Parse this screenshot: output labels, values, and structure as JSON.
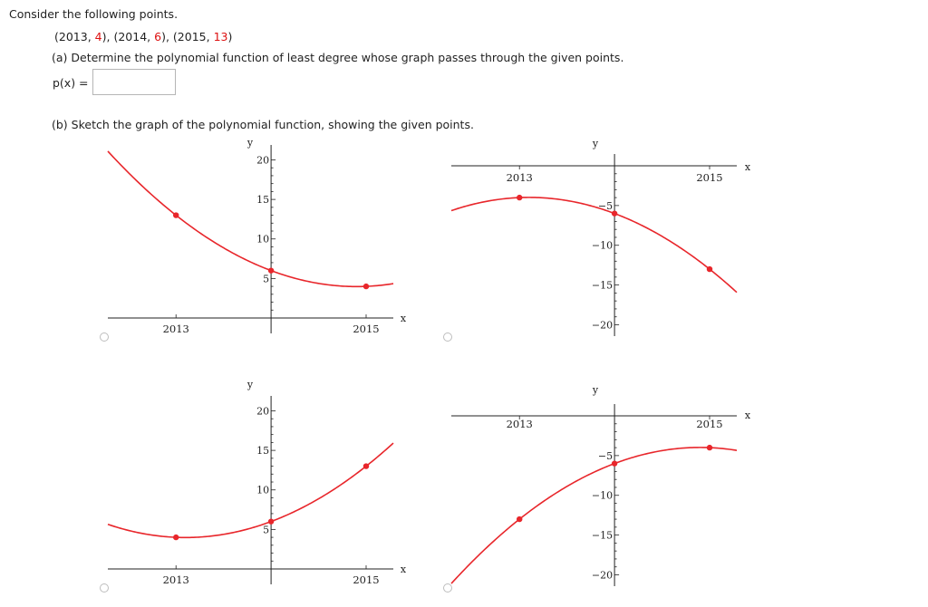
{
  "question": {
    "intro": "Consider the following points.",
    "points": [
      {
        "open": "(",
        "x": "2013",
        "sep": ", ",
        "y": "4",
        "close": "),"
      },
      {
        "open": "(",
        "x": "2014",
        "sep": ", ",
        "y": "6",
        "close": "),"
      },
      {
        "open": "(",
        "x": "2015",
        "sep": ", ",
        "y": "13",
        "close": ")"
      }
    ],
    "part_a": "(a) Determine the polynomial function of least degree whose graph passes through the given points.",
    "answer_label": "p(x)  =",
    "answer_value": "",
    "part_b": "(b) Sketch the graph of the polynomial function, showing the given points."
  },
  "colors": {
    "curve": "#e8262b",
    "point": "#e8262b",
    "axis": "#222222",
    "highlight": "#d11111"
  },
  "chart_data": [
    {
      "type": "line",
      "id": "graph-1",
      "xlabel": "x",
      "ylabel": "y",
      "x_ticks": [
        "2013",
        "2015"
      ],
      "y_ticks": [
        "20",
        "15",
        "10",
        "5"
      ],
      "points": [
        [
          2013,
          13
        ],
        [
          2014,
          6
        ],
        [
          2015,
          4
        ]
      ]
    },
    {
      "type": "line",
      "id": "graph-2",
      "xlabel": "x",
      "ylabel": "y",
      "x_ticks": [
        "2013",
        "2015"
      ],
      "y_ticks": [
        "−5",
        "−10",
        "−15",
        "−20"
      ],
      "points": [
        [
          2013,
          -4
        ],
        [
          2014,
          -6
        ],
        [
          2015,
          -13
        ]
      ]
    },
    {
      "type": "line",
      "id": "graph-3",
      "xlabel": "x",
      "ylabel": "y",
      "x_ticks": [
        "2013",
        "2015"
      ],
      "y_ticks": [
        "20",
        "15",
        "10",
        "5"
      ],
      "points": [
        [
          2013,
          4
        ],
        [
          2014,
          6
        ],
        [
          2015,
          13
        ]
      ]
    },
    {
      "type": "line",
      "id": "graph-4",
      "xlabel": "x",
      "ylabel": "y",
      "x_ticks": [
        "2013",
        "2015"
      ],
      "y_ticks": [
        "−5",
        "−10",
        "−15",
        "−20"
      ],
      "points": [
        [
          2013,
          -13
        ],
        [
          2014,
          -6
        ],
        [
          2015,
          -4
        ]
      ]
    }
  ]
}
